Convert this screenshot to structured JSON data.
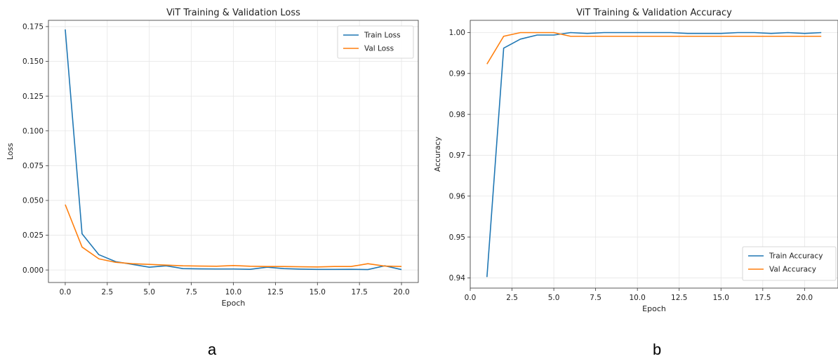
{
  "chart_data": [
    {
      "type": "line",
      "title": "ViT Training & Validation Loss",
      "xlabel": "Epoch",
      "ylabel": "Loss",
      "xlim": [
        -1.0,
        21.0
      ],
      "ylim": [
        -0.009,
        0.1795
      ],
      "xticks": [
        "0.0",
        "2.5",
        "5.0",
        "7.5",
        "10.0",
        "12.5",
        "15.0",
        "17.5",
        "20.0"
      ],
      "yticks": [
        "0.000",
        "0.025",
        "0.050",
        "0.075",
        "0.100",
        "0.125",
        "0.150",
        "0.175"
      ],
      "grid": true,
      "legend_position": "top-right",
      "x": [
        0,
        1,
        2,
        3,
        4,
        5,
        6,
        7,
        8,
        9,
        10,
        11,
        12,
        13,
        14,
        15,
        16,
        17,
        18,
        19,
        20
      ],
      "series": [
        {
          "name": "Train Loss",
          "color": "#1f77b4",
          "values": [
            0.173,
            0.026,
            0.011,
            0.006,
            0.004,
            0.002,
            0.003,
            0.001,
            0.0008,
            0.0007,
            0.0007,
            0.0005,
            0.002,
            0.001,
            0.0006,
            0.0004,
            0.0004,
            0.0005,
            0.0003,
            0.003,
            0.0003
          ]
        },
        {
          "name": "Val Loss",
          "color": "#ff7f0e",
          "values": [
            0.047,
            0.0165,
            0.008,
            0.0055,
            0.0045,
            0.004,
            0.0035,
            0.003,
            0.0028,
            0.0027,
            0.0032,
            0.0027,
            0.0025,
            0.0025,
            0.0023,
            0.0022,
            0.0025,
            0.0025,
            0.0045,
            0.0028,
            0.0025
          ]
        }
      ]
    },
    {
      "type": "line",
      "title": "ViT Training & Validation Accuracy",
      "xlabel": "Epoch",
      "ylabel": "Accuracy",
      "xlim": [
        0.0,
        22.0
      ],
      "ylim": [
        0.9375,
        1.003
      ],
      "xticks": [
        "0.0",
        "2.5",
        "5.0",
        "7.5",
        "10.0",
        "12.5",
        "15.0",
        "17.5",
        "20.0"
      ],
      "yticks": [
        "0.94",
        "0.95",
        "0.96",
        "0.97",
        "0.98",
        "0.99",
        "1.00"
      ],
      "grid": true,
      "legend_position": "bottom-right",
      "x": [
        1,
        2,
        3,
        4,
        5,
        6,
        7,
        8,
        9,
        10,
        11,
        12,
        13,
        14,
        15,
        16,
        17,
        18,
        19,
        20,
        21
      ],
      "series": [
        {
          "name": "Train Accuracy",
          "color": "#1f77b4",
          "values": [
            0.9402,
            0.9962,
            0.9984,
            0.9994,
            0.9994,
            1.0,
            0.9998,
            1.0,
            1.0,
            1.0,
            1.0,
            1.0,
            0.9998,
            0.9998,
            0.9998,
            1.0,
            1.0,
            0.9998,
            1.0,
            0.9998,
            1.0
          ]
        },
        {
          "name": "Val Accuracy",
          "color": "#ff7f0e",
          "values": [
            0.9923,
            0.9991,
            1.0,
            1.0,
            1.0,
            0.9991,
            0.9991,
            0.9991,
            0.9991,
            0.9991,
            0.9991,
            0.9991,
            0.9991,
            0.9991,
            0.9991,
            0.9991,
            0.9991,
            0.9991,
            0.9991,
            0.9991,
            0.9991
          ]
        }
      ]
    }
  ],
  "captions": {
    "left": "a",
    "right": "b"
  }
}
